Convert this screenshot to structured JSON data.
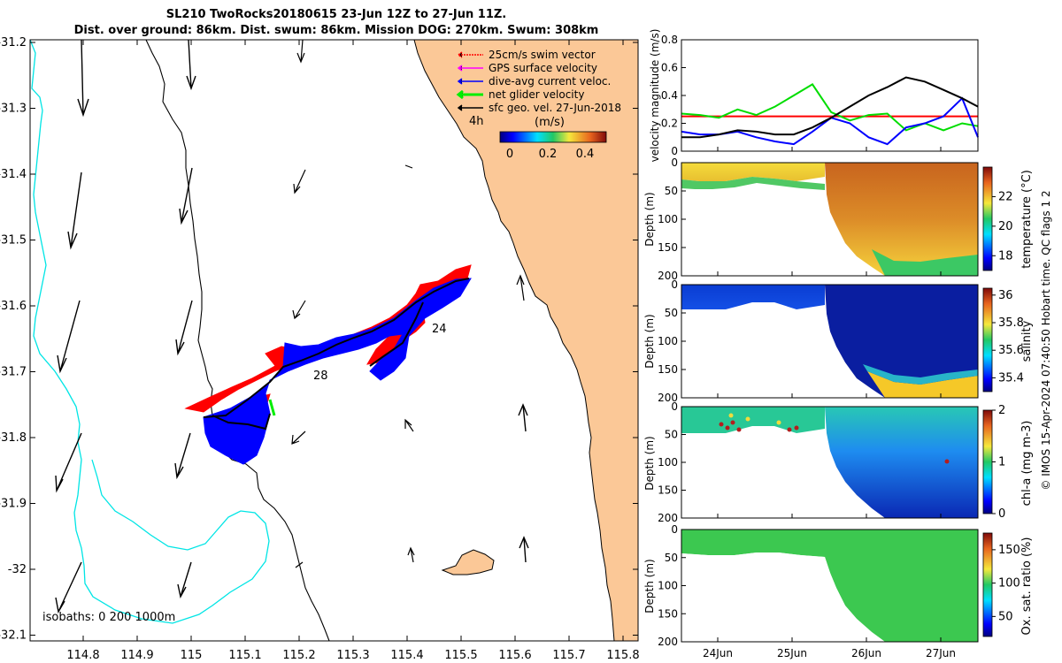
{
  "header": {
    "title_line1": "SL210 TwoRocks20180615 23-Jun 12Z to 27-Jun 11Z.",
    "title_line2": "Dist. over ground: 86km. Dist. swum: 86km. Mission DOG: 270km. Swum: 308km"
  },
  "map": {
    "x_ticks": [
      "114.8",
      "114.9",
      "115",
      "115.1",
      "115.2",
      "115.3",
      "115.4",
      "115.5",
      "115.6",
      "115.7",
      "115.8"
    ],
    "y_ticks": [
      "-31.2",
      "-31.3",
      "-31.4",
      "-31.5",
      "-31.6",
      "-31.7",
      "-31.8",
      "-31.9",
      "-32",
      "-32.1"
    ],
    "legend": [
      {
        "label": "25cm/s swim vector",
        "color": "#ff0000"
      },
      {
        "label": "GPS surface velocity",
        "color": "#ff00ff"
      },
      {
        "label": "dive-avg current veloc.",
        "color": "#0000ff"
      },
      {
        "label": "net glider velocity",
        "color": "#00ff00"
      },
      {
        "label": "sfc geo. vel. 27-Jun-2018",
        "color": "#000000"
      }
    ],
    "time_label": "4h",
    "colorbar_label": "(m/s)",
    "colorbar_ticks": [
      "0",
      "0.2",
      "0.4"
    ],
    "day_labels": [
      "24",
      "28"
    ],
    "isobaths_label": "isobaths: 0   200  1000m",
    "colors": {
      "land": "#fbc897",
      "track": "#0000ff",
      "isobath": "#00e5e5"
    }
  },
  "panels": [
    {
      "ylabel": "velocity magnitude (m/s)",
      "yticks": [
        "0",
        "0.2",
        "0.4",
        "0.6",
        "0.8"
      ]
    },
    {
      "ylabel": "Depth (m)",
      "cblabel": "temperature (°C)",
      "cbticks": [
        "18",
        "20",
        "22"
      ],
      "yticks": [
        "0",
        "50",
        "100",
        "150",
        "200"
      ]
    },
    {
      "ylabel": "Depth (m)",
      "cblabel": "salinity",
      "cbticks": [
        "35.4",
        "35.6",
        "35.8",
        "36"
      ],
      "yticks": [
        "0",
        "50",
        "100",
        "150",
        "200"
      ]
    },
    {
      "ylabel": "Depth (m)",
      "cblabel": "chl-a (mg m-3)",
      "cbticks": [
        "0",
        "1",
        "2"
      ],
      "yticks": [
        "0",
        "50",
        "100",
        "150",
        "200"
      ]
    },
    {
      "ylabel": "Depth (m)",
      "cblabel": "Ox. sat. ratio (%)",
      "cbticks": [
        "50",
        "100",
        "150"
      ],
      "yticks": [
        "0",
        "50",
        "100",
        "150",
        "200"
      ]
    }
  ],
  "time_ticks": [
    "24Jun",
    "25Jun",
    "26Jun",
    "27Jun"
  ],
  "side_note": "© IMOS 15-Apr-2024 07:40:50 Hobart time. QC flags 1  2",
  "chart_data": [
    {
      "type": "line",
      "x": [
        0,
        0.25,
        0.5,
        0.75,
        1.0,
        1.25,
        1.5,
        1.75,
        2.0,
        2.25,
        2.5,
        2.75,
        3.0,
        3.25,
        3.5,
        3.75,
        3.96
      ],
      "series": [
        {
          "color": "#ff0000",
          "values": [
            0.25,
            0.25,
            0.25,
            0.25,
            0.25,
            0.25,
            0.25,
            0.25,
            0.25,
            0.25,
            0.25,
            0.25,
            0.25,
            0.25,
            0.25,
            0.25,
            0.25
          ]
        },
        {
          "color": "#00dd00",
          "values": [
            0.27,
            0.26,
            0.24,
            0.3,
            0.26,
            0.32,
            0.4,
            0.48,
            0.28,
            0.22,
            0.26,
            0.27,
            0.15,
            0.2,
            0.15,
            0.2,
            0.18
          ]
        },
        {
          "color": "#0000ff",
          "values": [
            0.14,
            0.12,
            0.12,
            0.14,
            0.1,
            0.07,
            0.05,
            0.14,
            0.24,
            0.2,
            0.1,
            0.05,
            0.17,
            0.2,
            0.25,
            0.38,
            0.1
          ]
        },
        {
          "color": "#000000",
          "values": [
            0.1,
            0.1,
            0.12,
            0.15,
            0.14,
            0.12,
            0.12,
            0.17,
            0.24,
            0.32,
            0.4,
            0.46,
            0.53,
            0.5,
            0.44,
            0.38,
            0.32
          ]
        }
      ],
      "ylim": [
        0,
        0.8
      ],
      "ylabel": "velocity magnitude (m/s)"
    },
    {
      "type": "heatmap",
      "variable": "temperature",
      "ylim": [
        0,
        200
      ],
      "clim": [
        17,
        24
      ]
    },
    {
      "type": "heatmap",
      "variable": "salinity",
      "ylim": [
        0,
        200
      ],
      "clim": [
        35.3,
        36.05
      ]
    },
    {
      "type": "heatmap",
      "variable": "chl-a",
      "ylim": [
        0,
        200
      ],
      "clim": [
        0,
        2
      ]
    },
    {
      "type": "heatmap",
      "variable": "oxygen saturation",
      "ylim": [
        0,
        200
      ],
      "clim": [
        20,
        175
      ]
    }
  ]
}
